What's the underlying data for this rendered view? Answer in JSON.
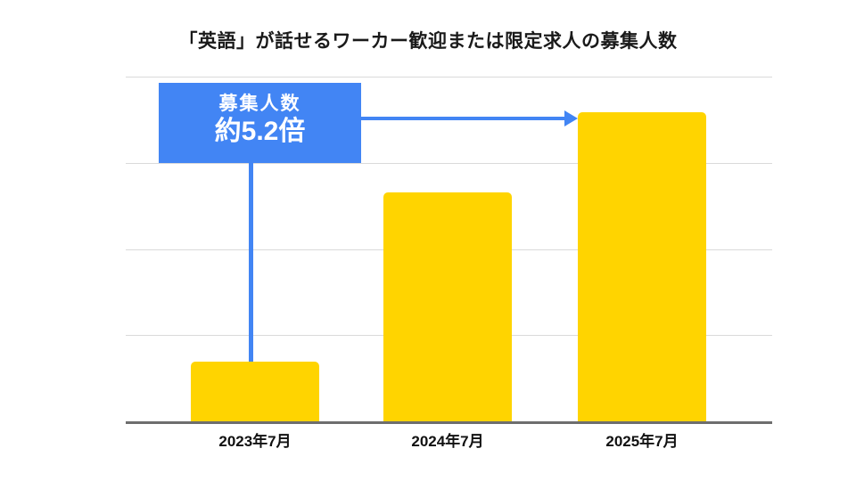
{
  "chart_data": {
    "type": "bar",
    "title": "「英語」が話せるワーカー歓迎または限定求人の募集人数",
    "categories": [
      "2023年7月",
      "2024年7月",
      "2025年7月"
    ],
    "values": [
      1,
      3.85,
      5.2
    ],
    "xlabel": "",
    "ylabel": "",
    "ylim": [
      0,
      5.8
    ],
    "grid": true,
    "legend": "none",
    "annotation": {
      "callout_line1": "募集人数",
      "callout_line2": "約5.2倍",
      "connects": [
        "2023年7月",
        "2025年7月"
      ]
    }
  },
  "callout": {
    "line1": "募集人数",
    "line2": "約5.2倍"
  },
  "colors": {
    "bar": "#FFD400",
    "accent_blue": "#4285F4",
    "gridline": "#DADADA",
    "axis": "#6E6E6E",
    "title_text": "#1A1A1A",
    "background": "#FFFFFF"
  }
}
